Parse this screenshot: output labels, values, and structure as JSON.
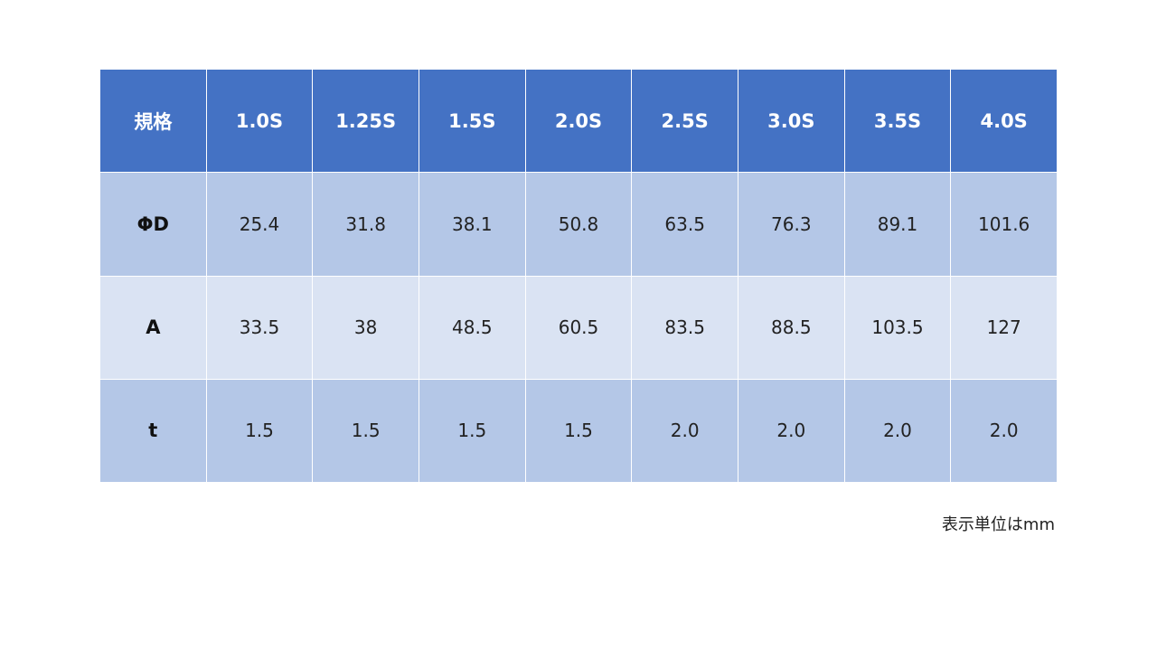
{
  "table": {
    "header": [
      "規格",
      "1.0S",
      "1.25S",
      "1.5S",
      "2.0S",
      "2.5S",
      "3.0S",
      "3.5S",
      "4.0S"
    ],
    "rows": [
      [
        "ΦD",
        "25.4",
        "31.8",
        "38.1",
        "50.8",
        "63.5",
        "76.3",
        "89.1",
        "101.6"
      ],
      [
        "A",
        "33.5",
        "38",
        "48.5",
        "60.5",
        "83.5",
        "88.5",
        "103.5",
        "127"
      ],
      [
        "t",
        "1.5",
        "1.5",
        "1.5",
        "1.5",
        "2.0",
        "2.0",
        "2.0",
        "2.0"
      ]
    ]
  },
  "note": "表示単位はmm"
}
